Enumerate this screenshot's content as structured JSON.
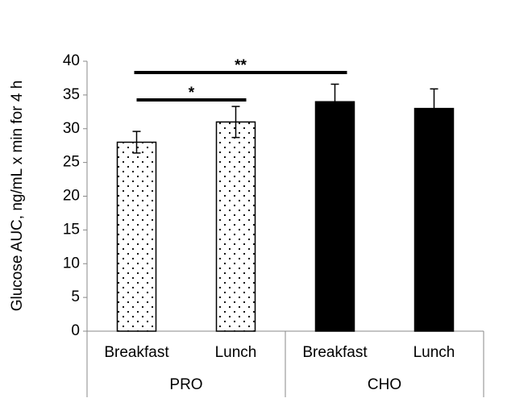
{
  "chart_data": {
    "type": "bar",
    "y_label": "Glucose AUC, ng/mL x min for 4 h",
    "ylim": [
      0,
      40
    ],
    "yticks": [
      0,
      5,
      10,
      15,
      20,
      25,
      30,
      35,
      40
    ],
    "groups": [
      {
        "name": "PRO",
        "categories": [
          "Breakfast",
          "Lunch"
        ],
        "values": [
          28,
          31
        ],
        "errors": [
          1.6,
          2.3
        ],
        "color": "#ffffff",
        "pattern": "dots"
      },
      {
        "name": "CHO",
        "categories": [
          "Breakfast",
          "Lunch"
        ],
        "values": [
          34,
          33
        ],
        "errors": [
          2.6,
          2.9
        ],
        "color": "#000000"
      }
    ],
    "annotations": [
      "**",
      "*"
    ]
  }
}
